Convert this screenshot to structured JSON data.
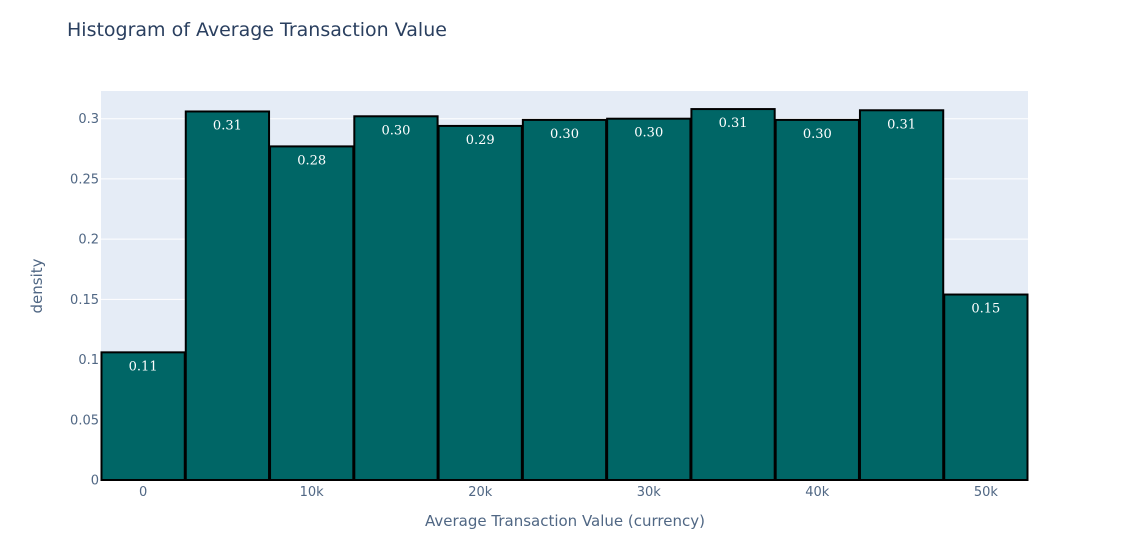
{
  "chart_data": {
    "type": "bar",
    "title": "Histogram of Average Transaction Value",
    "xlabel": "Average Transaction Value (currency)",
    "ylabel": "density",
    "ylim": [
      0,
      0.323
    ],
    "xlim": [
      -2500,
      52500
    ],
    "grid": true,
    "bar_color": "#006666",
    "bar_edge_color": "#000000",
    "plot_background": "#e5ecf6",
    "x_ticks": [
      {
        "value": 0,
        "label": "0"
      },
      {
        "value": 10000,
        "label": "10k"
      },
      {
        "value": 20000,
        "label": "20k"
      },
      {
        "value": 30000,
        "label": "30k"
      },
      {
        "value": 40000,
        "label": "40k"
      },
      {
        "value": 50000,
        "label": "50k"
      }
    ],
    "y_ticks": [
      {
        "value": 0,
        "label": "0"
      },
      {
        "value": 0.05,
        "label": "0.05"
      },
      {
        "value": 0.1,
        "label": "0.1"
      },
      {
        "value": 0.15,
        "label": "0.15"
      },
      {
        "value": 0.2,
        "label": "0.2"
      },
      {
        "value": 0.25,
        "label": "0.25"
      },
      {
        "value": 0.3,
        "label": "0.3"
      }
    ],
    "bins": [
      {
        "start": -2500,
        "end": 2500,
        "value": 0.106,
        "label": "0.11"
      },
      {
        "start": 2500,
        "end": 7500,
        "value": 0.306,
        "label": "0.31"
      },
      {
        "start": 7500,
        "end": 12500,
        "value": 0.277,
        "label": "0.28"
      },
      {
        "start": 12500,
        "end": 17500,
        "value": 0.302,
        "label": "0.30"
      },
      {
        "start": 17500,
        "end": 22500,
        "value": 0.294,
        "label": "0.29"
      },
      {
        "start": 22500,
        "end": 27500,
        "value": 0.299,
        "label": "0.30"
      },
      {
        "start": 27500,
        "end": 32500,
        "value": 0.3,
        "label": "0.30"
      },
      {
        "start": 32500,
        "end": 37500,
        "value": 0.308,
        "label": "0.31"
      },
      {
        "start": 37500,
        "end": 42500,
        "value": 0.299,
        "label": "0.30"
      },
      {
        "start": 42500,
        "end": 47500,
        "value": 0.307,
        "label": "0.31"
      },
      {
        "start": 47500,
        "end": 52500,
        "value": 0.154,
        "label": "0.15"
      }
    ]
  }
}
